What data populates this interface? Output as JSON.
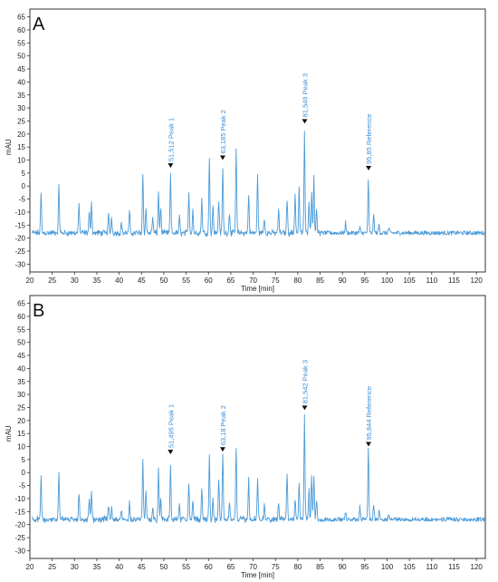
{
  "chart_data": [
    {
      "type": "line",
      "panel_label": "A",
      "xlabel": "Time [min]",
      "ylabel": "mAU",
      "xlim": [
        20,
        122
      ],
      "ylim": [
        -33,
        68
      ],
      "xticks": [
        20,
        25,
        30,
        35,
        40,
        45,
        50,
        55,
        60,
        65,
        70,
        75,
        80,
        85,
        90,
        95,
        100,
        105,
        110,
        115,
        120
      ],
      "yticks": [
        -30,
        -25,
        -20,
        -15,
        -10,
        -5,
        0,
        5,
        10,
        15,
        20,
        25,
        30,
        35,
        40,
        45,
        50,
        55,
        60,
        65
      ],
      "grid": false,
      "baseline": -18,
      "peaks": [
        {
          "t": 22.5,
          "h": -3
        },
        {
          "t": 26.5,
          "h": 0
        },
        {
          "t": 31.0,
          "h": -7
        },
        {
          "t": 33.3,
          "h": -10
        },
        {
          "t": 33.8,
          "h": -6
        },
        {
          "t": 37.6,
          "h": -11
        },
        {
          "t": 38.3,
          "h": -12
        },
        {
          "t": 40.5,
          "h": -14
        },
        {
          "t": 42.3,
          "h": -10
        },
        {
          "t": 45.3,
          "h": 5
        },
        {
          "t": 46.0,
          "h": -9
        },
        {
          "t": 47.5,
          "h": -12
        },
        {
          "t": 48.8,
          "h": -2
        },
        {
          "t": 49.3,
          "h": -8
        },
        {
          "t": 51.5,
          "h": 4
        },
        {
          "t": 53.5,
          "h": -12
        },
        {
          "t": 55.6,
          "h": -2
        },
        {
          "t": 56.5,
          "h": -9
        },
        {
          "t": 58.5,
          "h": -5
        },
        {
          "t": 60.2,
          "h": 11
        },
        {
          "t": 61.0,
          "h": -8
        },
        {
          "t": 62.3,
          "h": -5
        },
        {
          "t": 63.2,
          "h": 7
        },
        {
          "t": 64.7,
          "h": -10
        },
        {
          "t": 66.2,
          "h": 14
        },
        {
          "t": 69.0,
          "h": -3
        },
        {
          "t": 71.0,
          "h": 4
        },
        {
          "t": 72.5,
          "h": -12
        },
        {
          "t": 75.7,
          "h": -9
        },
        {
          "t": 77.6,
          "h": -5
        },
        {
          "t": 79.4,
          "h": -3
        },
        {
          "t": 80.3,
          "h": -1
        },
        {
          "t": 81.5,
          "h": 20
        },
        {
          "t": 82.5,
          "h": -5
        },
        {
          "t": 83.1,
          "h": -2
        },
        {
          "t": 83.6,
          "h": 3
        },
        {
          "t": 84.2,
          "h": -8
        },
        {
          "t": 90.7,
          "h": -14
        },
        {
          "t": 93.9,
          "h": -16
        },
        {
          "t": 95.8,
          "h": 2
        },
        {
          "t": 97.0,
          "h": -11
        },
        {
          "t": 98.2,
          "h": -15
        },
        {
          "t": 100.4,
          "h": -16
        }
      ],
      "annotations": [
        {
          "t": 51.512,
          "y": 7,
          "label": "51,512 Peak 1"
        },
        {
          "t": 63.185,
          "y": 10,
          "label": "63,185 Peak 2"
        },
        {
          "t": 81.549,
          "y": 24,
          "label": "81,549 Peak 3"
        },
        {
          "t": 95.85,
          "y": 6,
          "label": "95,85 Reference"
        }
      ]
    },
    {
      "type": "line",
      "panel_label": "B",
      "xlabel": "Time [min]",
      "ylabel": "mAU",
      "xlim": [
        20,
        122
      ],
      "ylim": [
        -33,
        68
      ],
      "xticks": [
        20,
        25,
        30,
        35,
        40,
        45,
        50,
        55,
        60,
        65,
        70,
        75,
        80,
        85,
        90,
        95,
        100,
        105,
        110,
        115,
        120
      ],
      "yticks": [
        -30,
        -25,
        -20,
        -15,
        -10,
        -5,
        0,
        5,
        10,
        15,
        20,
        25,
        30,
        35,
        40,
        45,
        50,
        55,
        60,
        65
      ],
      "grid": false,
      "baseline": -18,
      "peaks": [
        {
          "t": 22.5,
          "h": -2
        },
        {
          "t": 26.5,
          "h": 0
        },
        {
          "t": 31.0,
          "h": -8
        },
        {
          "t": 33.3,
          "h": -11
        },
        {
          "t": 33.8,
          "h": -8
        },
        {
          "t": 37.6,
          "h": -12
        },
        {
          "t": 38.3,
          "h": -13
        },
        {
          "t": 40.5,
          "h": -14
        },
        {
          "t": 42.3,
          "h": -12
        },
        {
          "t": 45.3,
          "h": 5
        },
        {
          "t": 46.0,
          "h": -8
        },
        {
          "t": 47.5,
          "h": -13
        },
        {
          "t": 48.8,
          "h": 2
        },
        {
          "t": 49.3,
          "h": -10
        },
        {
          "t": 51.5,
          "h": 3
        },
        {
          "t": 53.5,
          "h": -12
        },
        {
          "t": 55.6,
          "h": -4
        },
        {
          "t": 56.5,
          "h": -10
        },
        {
          "t": 58.5,
          "h": -6
        },
        {
          "t": 60.2,
          "h": 6
        },
        {
          "t": 61.0,
          "h": -10
        },
        {
          "t": 62.3,
          "h": -2
        },
        {
          "t": 63.2,
          "h": 7
        },
        {
          "t": 64.7,
          "h": -11
        },
        {
          "t": 66.2,
          "h": 9
        },
        {
          "t": 69.0,
          "h": -3
        },
        {
          "t": 71.0,
          "h": -3
        },
        {
          "t": 72.5,
          "h": -13
        },
        {
          "t": 75.7,
          "h": -12
        },
        {
          "t": 77.6,
          "h": 0
        },
        {
          "t": 79.4,
          "h": -10
        },
        {
          "t": 80.3,
          "h": -3
        },
        {
          "t": 81.5,
          "h": 22
        },
        {
          "t": 82.5,
          "h": -7
        },
        {
          "t": 83.1,
          "h": -2
        },
        {
          "t": 83.6,
          "h": -1
        },
        {
          "t": 84.2,
          "h": -10
        },
        {
          "t": 90.7,
          "h": -15
        },
        {
          "t": 93.9,
          "h": -13
        },
        {
          "t": 95.8,
          "h": 9
        },
        {
          "t": 97.0,
          "h": -12
        },
        {
          "t": 98.2,
          "h": -14
        },
        {
          "t": 100.4,
          "h": -16
        }
      ],
      "annotations": [
        {
          "t": 51.495,
          "y": 7,
          "label": "51,495 Peak 1"
        },
        {
          "t": 63.18,
          "y": 8,
          "label": "63,18 Peak 2"
        },
        {
          "t": 81.542,
          "y": 24,
          "label": "81,542 Peak 3"
        },
        {
          "t": 95.844,
          "y": 10,
          "label": "95,844 Reference"
        }
      ]
    }
  ],
  "colors": {
    "trace": "#4a9ad8",
    "annotation": "#3a8fd8",
    "marker": "#111111",
    "axis": "#333333"
  }
}
